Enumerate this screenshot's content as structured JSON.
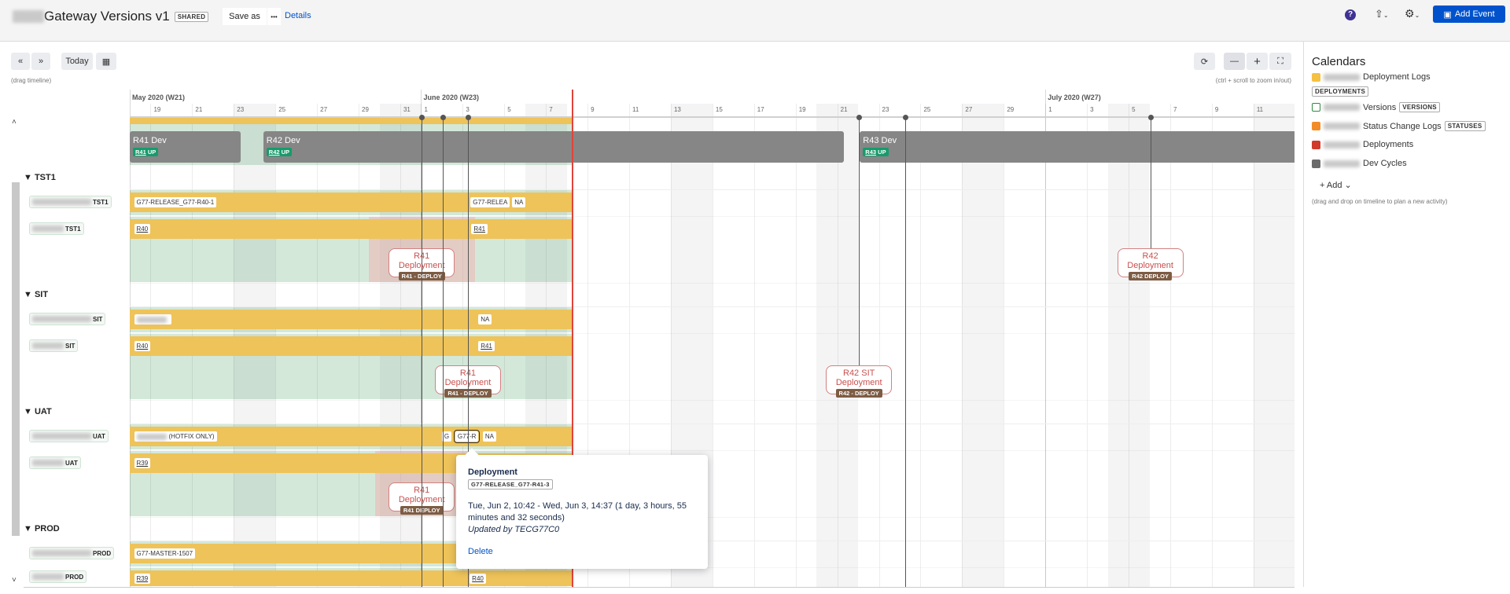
{
  "header": {
    "title": "Gateway Versions v1",
    "shared_badge": "SHARED",
    "save_as": "Save as",
    "more": "•••",
    "details": "Details",
    "add_event": "Add Event"
  },
  "toolbar": {
    "prev": "«",
    "next": "»",
    "today": "Today",
    "drag_hint": "(drag timeline)",
    "zoom_hint": "(ctrl + scroll to zoom in/out)",
    "zoom_out": "—",
    "zoom_in": "+"
  },
  "timeline": {
    "start": "2020-05-18",
    "end": "2020-07-13",
    "today": "2020-06-08T06:00",
    "months": [
      {
        "date": "2020-05-18",
        "label": "May 2020 (W21)"
      },
      {
        "date": "2020-06-01",
        "label": "June 2020 (W23)"
      },
      {
        "date": "2020-07-01",
        "label": "July 2020 (W27)"
      }
    ],
    "day_ticks": [
      {
        "date": "2020-05-19",
        "label": "19"
      },
      {
        "date": "2020-05-21",
        "label": "21"
      },
      {
        "date": "2020-05-23",
        "label": "23"
      },
      {
        "date": "2020-05-25",
        "label": "25"
      },
      {
        "date": "2020-05-27",
        "label": "27"
      },
      {
        "date": "2020-05-29",
        "label": "29"
      },
      {
        "date": "2020-05-31",
        "label": "31"
      },
      {
        "date": "2020-06-01",
        "label": "1"
      },
      {
        "date": "2020-06-03",
        "label": "3"
      },
      {
        "date": "2020-06-05",
        "label": "5"
      },
      {
        "date": "2020-06-07",
        "label": "7"
      },
      {
        "date": "2020-06-09",
        "label": "9"
      },
      {
        "date": "2020-06-11",
        "label": "11"
      },
      {
        "date": "2020-06-13",
        "label": "13"
      },
      {
        "date": "2020-06-15",
        "label": "15"
      },
      {
        "date": "2020-06-17",
        "label": "17"
      },
      {
        "date": "2020-06-19",
        "label": "19"
      },
      {
        "date": "2020-06-21",
        "label": "21"
      },
      {
        "date": "2020-06-23",
        "label": "23"
      },
      {
        "date": "2020-06-25",
        "label": "25"
      },
      {
        "date": "2020-06-27",
        "label": "27"
      },
      {
        "date": "2020-06-29",
        "label": "29"
      },
      {
        "date": "2020-07-01",
        "label": "1"
      },
      {
        "date": "2020-07-03",
        "label": "3"
      },
      {
        "date": "2020-07-05",
        "label": "5"
      },
      {
        "date": "2020-07-07",
        "label": "7"
      },
      {
        "date": "2020-07-09",
        "label": "9"
      },
      {
        "date": "2020-07-11",
        "label": "11"
      }
    ],
    "markers": [
      {
        "date": "2020-06-01T00:40",
        "to": "bottom"
      },
      {
        "date": "2020-06-02T01:00",
        "to": "bottom"
      },
      {
        "date": "2020-06-03T06:00",
        "to": "bottom"
      },
      {
        "date": "2020-06-22T01:00",
        "to": "sit"
      },
      {
        "date": "2020-06-24T06:00",
        "to": "bottom"
      },
      {
        "date": "2020-07-06T01:00",
        "to": "tst"
      }
    ]
  },
  "dev_cycles": [
    {
      "label": "R41 Dev",
      "badge_ref": "R41",
      "badge_text": "UP",
      "start": "2020-05-18",
      "end": "2020-05-23T08:00"
    },
    {
      "label": "R42 Dev",
      "badge_ref": "R42",
      "badge_text": "UP",
      "start": "2020-05-24T10:00",
      "end": "2020-06-21T08:00"
    },
    {
      "label": "R43 Dev",
      "badge_ref": "R43",
      "badge_text": "UP",
      "start": "2020-06-22T02:00",
      "end": "2020-07-14"
    }
  ],
  "groups": [
    {
      "name": "TST1",
      "rows": [
        {
          "suffix": "TST1",
          "items": [
            {
              "text": "G77-RELEASE_G77-R40-1",
              "at": "2020-05-18T05:00"
            },
            {
              "text": "G77-RELEA",
              "at": "2020-06-03T09:00"
            },
            {
              "text": "NA",
              "at": "2020-06-04T10:00"
            }
          ]
        },
        {
          "suffix": "TST1",
          "items": [
            {
              "text": "R40",
              "at": "2020-05-18T05:00",
              "u": true
            },
            {
              "text": "R41",
              "at": "2020-06-03T10:00",
              "u": true
            }
          ],
          "pink": [
            "2020-05-29T12:00",
            "2020-06-03T14:00"
          ],
          "deploys": [
            {
              "title": "R41 Deployment",
              "badge": "R41 - DEPLOY",
              "at": "2020-06-01T00:40"
            }
          ]
        }
      ]
    },
    {
      "name": "SIT",
      "rows": [
        {
          "suffix": "SIT",
          "items": [
            {
              "blur": true,
              "at": "2020-05-18T05:00"
            },
            {
              "text": "NA",
              "at": "2020-06-03T18:00"
            }
          ]
        },
        {
          "suffix": "SIT",
          "items": [
            {
              "text": "R40",
              "at": "2020-05-18T05:00",
              "u": true
            },
            {
              "text": "R41",
              "at": "2020-06-03T18:00",
              "u": true
            }
          ],
          "deploys": [
            {
              "title": "R41 Deployment",
              "badge": "R41 - DEPLOY",
              "at": "2020-06-03T06:00"
            },
            {
              "title": "R42 SIT Deployment",
              "badge": "R42 - DEPLOY",
              "at": "2020-06-22T01:00"
            }
          ]
        }
      ]
    },
    {
      "name": "UAT",
      "rows": [
        {
          "suffix": "UAT",
          "items": [
            {
              "blur": true,
              "text": "(HOTFIX ONLY)",
              "at": "2020-05-18T05:00"
            },
            {
              "text": "G",
              "at": "2020-06-02T00:00"
            },
            {
              "text": "G77-R",
              "at": "2020-06-02T10:42",
              "selected": true
            },
            {
              "text": "NA",
              "at": "2020-06-03T17:00"
            }
          ]
        },
        {
          "suffix": "UAT",
          "items": [
            {
              "text": "R39",
              "at": "2020-05-18T05:00",
              "u": true
            }
          ],
          "pink": [
            "2020-05-29T19:00",
            "2020-06-03T10:00"
          ],
          "deploys": [
            {
              "title": "R41 Deployment",
              "badge": "R41 DEPLOY",
              "at": "2020-06-01T00:40"
            }
          ]
        }
      ]
    },
    {
      "name": "PROD",
      "rows": [
        {
          "suffix": "PROD",
          "items": [
            {
              "text": "G77-MASTER-1507",
              "at": "2020-05-18T05:00"
            }
          ]
        },
        {
          "suffix": "PROD",
          "items": [
            {
              "text": "R39",
              "at": "2020-05-18T05:00",
              "u": true
            },
            {
              "text": "R40",
              "at": "2020-06-03T08:00",
              "u": true
            }
          ]
        }
      ]
    }
  ],
  "other_deploys": [
    {
      "title": "R42 Deployment",
      "badge": "R42 DEPLOY",
      "at": "2020-07-06T01:00"
    }
  ],
  "tooltip": {
    "title": "Deployment",
    "ref": "G77-RELEASE_G77-R41-3",
    "range": "Tue, Jun 2, 10:42 - Wed, Jun 3, 14:37 (1 day, 3 hours, 55 minutes and 32 seconds)",
    "updated": "Updated by TECG77C0",
    "delete": "Delete"
  },
  "calendars": {
    "title": "Calendars",
    "items": [
      {
        "name": "Deployment Logs",
        "tag": "DEPLOYMENTS",
        "color": "#f5c142"
      },
      {
        "name": "Versions",
        "tag": "VERSIONS",
        "color": "#2e8b3e",
        "outline": true
      },
      {
        "name": "Status Change Logs",
        "tag": "STATUSES",
        "color": "#f28c28"
      },
      {
        "name": "Deployments",
        "color": "#d0392b"
      },
      {
        "name": "Dev Cycles",
        "color": "#6b6b6b"
      }
    ],
    "add": "+ Add",
    "hint": "(drag and drop on timeline to plan a new activity)"
  }
}
